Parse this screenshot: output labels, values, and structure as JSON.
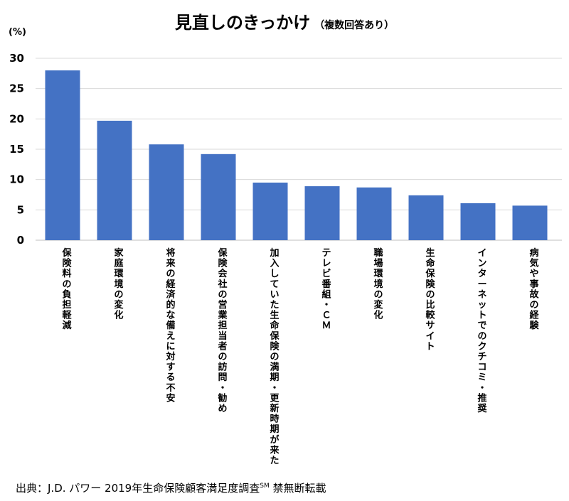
{
  "title": "見直しのきっかけ",
  "subtitle": "（複数回答あり）",
  "unit": "(%)",
  "source_text": "出典：J.D. パワー 2019年生命保険顧客満足度調査",
  "source_superscript": "SM",
  "source_suffix": "禁無断転載",
  "colors": {
    "bar": "#4472C4",
    "grid": "#D9D9D9",
    "axis": "#BFBFBF"
  },
  "chart_data": {
    "type": "bar",
    "title": "見直しのきっかけ",
    "xlabel": "",
    "ylabel": "",
    "ylim": [
      0,
      30
    ],
    "yticks": [
      "0",
      "5",
      "10",
      "15",
      "20",
      "25",
      "30"
    ],
    "grid": true,
    "categories": [
      "保険料の負担軽減",
      "家庭環境の変化",
      "将来の経済的な備えに対する不安",
      "保険会社の営業担当者の訪問・勧め",
      "加入していた生命保険の満期・更新時期が来た",
      "テレビ番組・ＣＭ",
      "職場環境の変化",
      "生命保険の比較サイト",
      "インターネットでのクチコミ・推奨",
      "病気や事故の経験"
    ],
    "values": [
      28.0,
      19.7,
      15.8,
      14.2,
      9.5,
      8.9,
      8.7,
      7.4,
      6.1,
      5.7
    ]
  }
}
